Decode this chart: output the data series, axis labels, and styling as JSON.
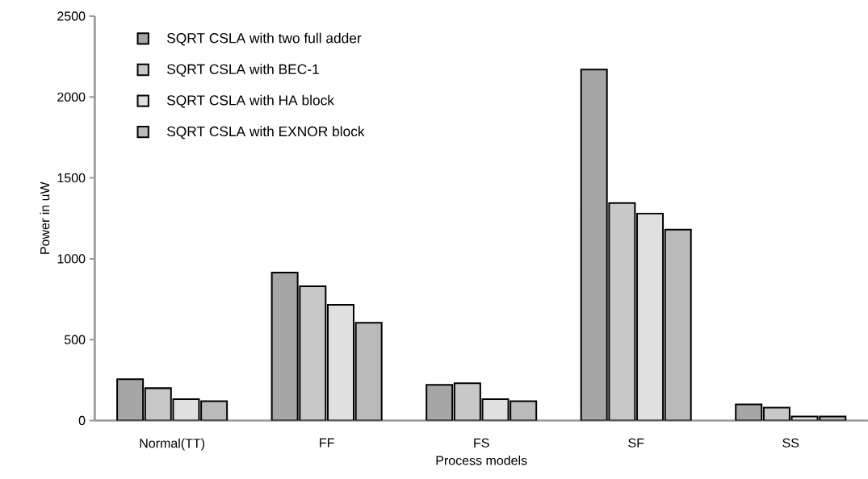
{
  "chart_data": {
    "type": "bar",
    "xlabel": "Process models",
    "ylabel": "Power in uW",
    "categories": [
      "Normal(TT)",
      "FF",
      "FS",
      "SF",
      "SS"
    ],
    "series": [
      {
        "name": "SQRT CSLA with two full adder",
        "color": "#a6a6a6",
        "values": [
          255,
          915,
          220,
          2170,
          100
        ]
      },
      {
        "name": "SQRT CSLA with BEC-1",
        "color": "#c8c8c8",
        "values": [
          200,
          830,
          230,
          1345,
          80
        ]
      },
      {
        "name": "SQRT CSLA with HA block",
        "color": "#e0e0e0",
        "values": [
          132,
          715,
          132,
          1280,
          25
        ]
      },
      {
        "name": "SQRT CSLA with EXNOR block",
        "color": "#bababa",
        "values": [
          120,
          605,
          120,
          1180,
          25
        ]
      }
    ],
    "ylim": [
      0,
      2500
    ],
    "yticks": [
      0,
      500,
      1000,
      1500,
      2000,
      2500
    ],
    "grid": false,
    "legend": "top left"
  }
}
